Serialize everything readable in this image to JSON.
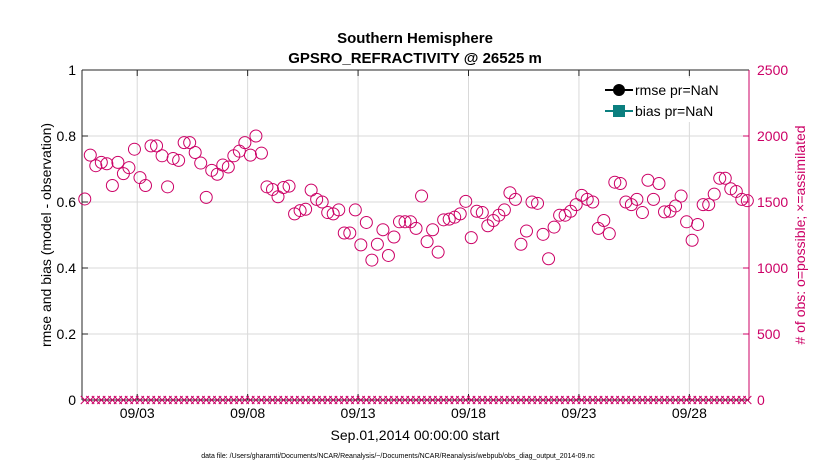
{
  "chart_data": {
    "type": "scatter",
    "title": "Southern Hemisphere",
    "subtitle": "GPSRO_REFRACTIVITY @ 26525 m",
    "xlabel": "Sep.01,2014 00:00:00 start",
    "ylabel_left": "rmse and bias (model - observation)",
    "ylabel_right": "# of obs: o=possible; ×=assimilated",
    "xlim": [
      1,
      31.2
    ],
    "ylim_left": [
      0,
      1
    ],
    "ylim_right": [
      0,
      2500
    ],
    "x_ticks": [
      {
        "x": 3.5,
        "label": "09/03"
      },
      {
        "x": 8.5,
        "label": "09/08"
      },
      {
        "x": 13.5,
        "label": "09/13"
      },
      {
        "x": 18.5,
        "label": "09/18"
      },
      {
        "x": 23.5,
        "label": "09/23"
      },
      {
        "x": 28.5,
        "label": "09/28"
      }
    ],
    "y_ticks_left": [
      "0",
      "0.2",
      "0.4",
      "0.6",
      "0.8",
      "1"
    ],
    "y_ticks_right": [
      "0",
      "500",
      "1000",
      "1500",
      "2000",
      "2500"
    ],
    "legend": [
      {
        "label": "rmse pr=NaN",
        "color": "#000000",
        "marker": "circle"
      },
      {
        "label": "bias pr=NaN",
        "color": "#0b7f7f",
        "marker": "square"
      }
    ],
    "colors": {
      "obs": "#cc0066",
      "rmse": "#000000",
      "bias": "#0b7f7f"
    },
    "series_possible": {
      "name": "possible observations",
      "axis": "right",
      "x_start": 1.125,
      "x_step": 0.25,
      "values": [
        1523,
        1855,
        1775,
        1800,
        1790,
        1625,
        1800,
        1715,
        1760,
        1900,
        1685,
        1625,
        1925,
        1925,
        1850,
        1615,
        1830,
        1815,
        1950,
        1950,
        1875,
        1795,
        1535,
        1740,
        1710,
        1780,
        1765,
        1850,
        1885,
        1950,
        1855,
        2000,
        1870,
        1615,
        1595,
        1540,
        1610,
        1620,
        1410,
        1435,
        1445,
        1590,
        1520,
        1500,
        1420,
        1410,
        1440,
        1265,
        1265,
        1440,
        1175,
        1345,
        1060,
        1180,
        1290,
        1095,
        1235,
        1350,
        1350,
        1350,
        1300,
        1545,
        1200,
        1290,
        1120,
        1365,
        1370,
        1385,
        1410,
        1505,
        1230,
        1430,
        1420,
        1320,
        1360,
        1400,
        1440,
        1570,
        1520,
        1180,
        1280,
        1500,
        1490,
        1255,
        1070,
        1310,
        1400,
        1400,
        1430,
        1480,
        1550,
        1520,
        1500,
        1300,
        1360,
        1260,
        1650,
        1640,
        1500,
        1480,
        1520,
        1420,
        1665,
        1520,
        1640,
        1425,
        1430,
        1470,
        1545,
        1350,
        1210,
        1330,
        1480,
        1480,
        1560,
        1680,
        1680,
        1600,
        1580,
        1520,
        1510
      ]
    },
    "series_assimilated": {
      "name": "assimilated observations",
      "axis": "right",
      "x_start": 1.125,
      "x_step": 0.25,
      "count": 121,
      "value": 0
    },
    "footnote": "data file: /Users/gharamti/Documents/NCAR/Reanalysis/~/Documents/NCAR/Reanalysis/webpub/obs_diag_output_2014-09.nc"
  }
}
